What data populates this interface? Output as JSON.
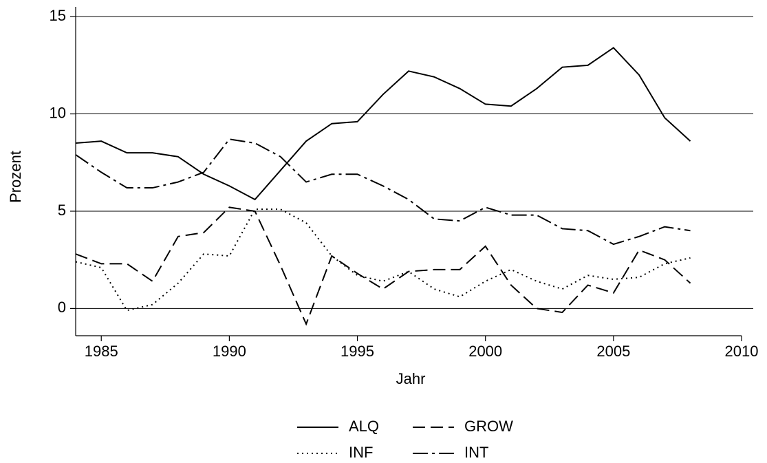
{
  "chart_data": {
    "type": "line",
    "x_label": "Jahr",
    "y_label": "Prozent",
    "x": [
      1984,
      1985,
      1986,
      1987,
      1988,
      1989,
      1990,
      1991,
      1992,
      1993,
      1994,
      1995,
      1996,
      1997,
      1998,
      1999,
      2000,
      2001,
      2002,
      2003,
      2004,
      2005,
      2006,
      2007,
      2008
    ],
    "series": [
      {
        "name": "ALQ",
        "color": "#000000",
        "dash": "solid",
        "values": [
          8.5,
          8.6,
          8.0,
          8.0,
          7.8,
          6.9,
          6.3,
          5.6,
          7.1,
          8.6,
          9.5,
          9.6,
          11.0,
          12.2,
          11.9,
          11.3,
          10.5,
          10.4,
          11.3,
          12.4,
          12.5,
          13.4,
          12.0,
          9.8,
          8.6
        ]
      },
      {
        "name": "GROW",
        "color": "#000000",
        "dash": "dash",
        "values": [
          2.8,
          2.3,
          2.3,
          1.4,
          3.7,
          3.9,
          5.2,
          5.0,
          2.2,
          -0.8,
          2.7,
          1.8,
          1.0,
          1.9,
          2.0,
          2.0,
          3.2,
          1.2,
          0.0,
          -0.2,
          1.2,
          0.8,
          3.0,
          2.5,
          1.3
        ]
      },
      {
        "name": "INF",
        "color": "#000000",
        "dash": "dot",
        "values": [
          2.4,
          2.1,
          -0.1,
          0.2,
          1.3,
          2.8,
          2.7,
          5.1,
          5.1,
          4.4,
          2.7,
          1.7,
          1.4,
          1.9,
          1.0,
          0.6,
          1.4,
          2.0,
          1.4,
          1.0,
          1.7,
          1.5,
          1.6,
          2.3,
          2.6
        ]
      },
      {
        "name": "INT",
        "color": "#000000",
        "dash": "dashdot",
        "values": [
          7.9,
          7.0,
          6.2,
          6.2,
          6.5,
          7.0,
          8.7,
          8.5,
          7.8,
          6.5,
          6.9,
          6.9,
          6.3,
          5.6,
          4.6,
          4.5,
          5.2,
          4.8,
          4.8,
          4.1,
          4.0,
          3.3,
          3.7,
          4.2,
          4.0
        ]
      }
    ],
    "xlim": [
      1984,
      2010
    ],
    "xticks": [
      1985,
      1990,
      1995,
      2000,
      2005,
      2010
    ],
    "ylim": [
      -1.4,
      15.5
    ],
    "yticks": [
      0,
      5,
      10,
      15
    ],
    "grid": true,
    "legend": "bottom"
  }
}
